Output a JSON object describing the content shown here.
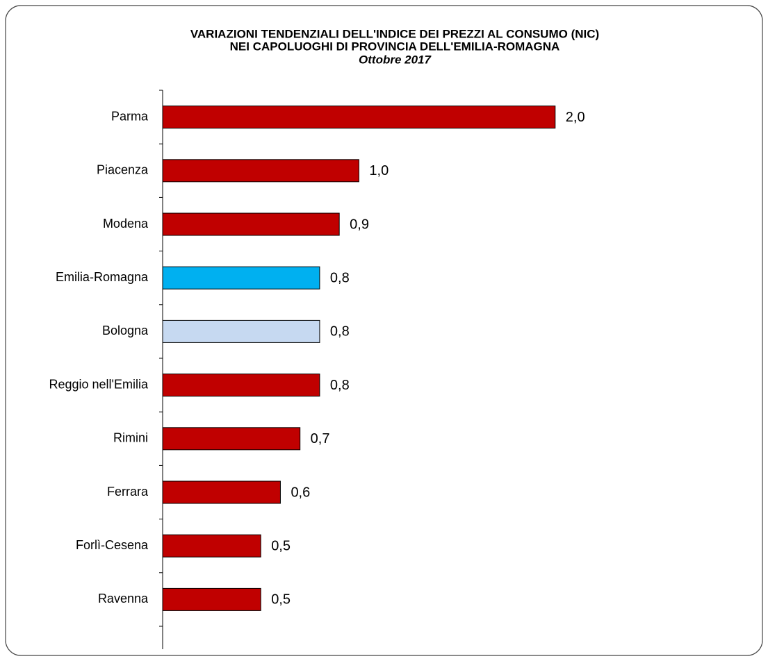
{
  "chart_data": {
    "type": "hbar",
    "title": [
      "VARIAZIONI TENDENZIALI DELL'INDICE DEI PREZZI AL CONSUMO (NIC)",
      "NEI CAPOLUOGHI DI PROVINCIA DELL'EMILIA-ROMAGNA"
    ],
    "subtitle": "Ottobre 2017",
    "categories": [
      "Parma",
      "Piacenza",
      "Modena",
      "Emilia-Romagna",
      "Bologna",
      "Reggio nell'Emilia",
      "Rimini",
      "Ferrara",
      "Forlì-Cesena",
      "Ravenna"
    ],
    "values": [
      2.0,
      1.0,
      0.9,
      0.8,
      0.8,
      0.8,
      0.7,
      0.6,
      0.5,
      0.5
    ],
    "value_labels": [
      "2,0",
      "1,0",
      "0,9",
      "0,8",
      "0,8",
      "0,8",
      "0,7",
      "0,6",
      "0,5",
      "0,5"
    ],
    "colors": [
      "#c00000",
      "#c00000",
      "#c00000",
      "#00b0f0",
      "#c6d9f1",
      "#c00000",
      "#c00000",
      "#c00000",
      "#c00000",
      "#c00000"
    ],
    "xlim": [
      0,
      2.5
    ]
  }
}
